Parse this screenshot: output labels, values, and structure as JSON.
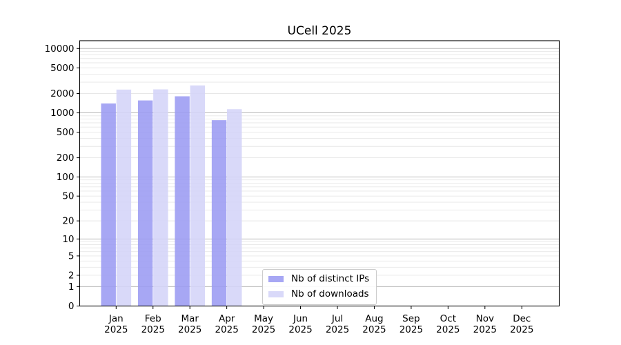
{
  "chart_data": {
    "type": "bar",
    "title": "UCell 2025",
    "x_categories": [
      "Jan",
      "Feb",
      "Mar",
      "Apr",
      "May",
      "Jun",
      "Jul",
      "Aug",
      "Sep",
      "Oct",
      "Nov",
      "Dec"
    ],
    "x_year": "2025",
    "series": [
      {
        "name": "Nb of distinct IPs",
        "color": "#9b9bf2",
        "values": [
          1400,
          1560,
          1810,
          770,
          null,
          null,
          null,
          null,
          null,
          null,
          null,
          null
        ]
      },
      {
        "name": "Nb of downloads",
        "color": "#d4d4f8",
        "values": [
          2300,
          2320,
          2670,
          1140,
          null,
          null,
          null,
          null,
          null,
          null,
          null,
          null
        ]
      }
    ],
    "y_scale": "log1p",
    "ylim": [
      0,
      13000
    ],
    "y_tick_values": [
      10000,
      5000,
      2000,
      1000,
      500,
      200,
      100,
      50,
      20,
      10,
      5,
      2,
      1,
      0
    ],
    "y_tick_labels": [
      "10000",
      "5000",
      "2000",
      "1000",
      "500",
      "200",
      "100",
      "50",
      "20",
      "10",
      "5",
      "2",
      "1",
      "0"
    ],
    "grid": {
      "major_color": "#b9b9b9",
      "minor_color": "#e7e7e7",
      "axis": "y"
    },
    "legend_position": "lower-center",
    "bar_opacity": 0.88,
    "text_color": "#000000",
    "spine_color": "#000000"
  }
}
